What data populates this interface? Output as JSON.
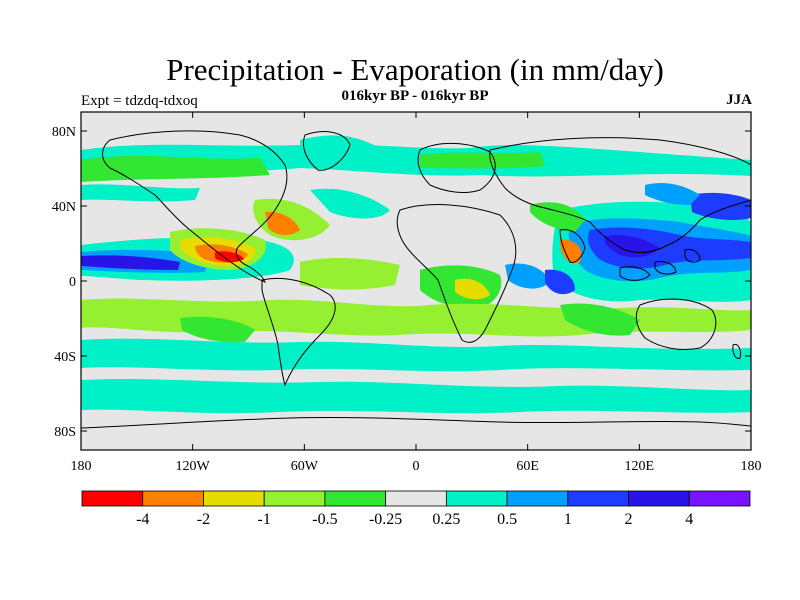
{
  "header": {
    "title": "Precipitation - Evaporation (in mm/day)",
    "subtitle": "016kyr BP - 016kyr BP",
    "left_label": "Expt = tdzdq-tdxoq",
    "right_label": "JJA"
  },
  "axes": {
    "lat_ticks": [
      "80N",
      "40N",
      "0",
      "40S",
      "80S"
    ],
    "lon_ticks": [
      "180",
      "120W",
      "60W",
      "0",
      "60E",
      "120E",
      "180"
    ]
  },
  "colorbar": {
    "colors": [
      "#ff0000",
      "#ff8000",
      "#e6dc00",
      "#96f032",
      "#32e632",
      "#e6e6e6",
      "#00f0c8",
      "#00a0ff",
      "#1e3cff",
      "#2814e6",
      "#7814ff"
    ],
    "labels": [
      "-4",
      "-2",
      "-1",
      "-0.5",
      "-0.25",
      "0.25",
      "0.5",
      "1",
      "2",
      "4"
    ]
  },
  "palette": {
    "ocean_gray": "#e6e6e6",
    "coast": "#000000"
  }
}
